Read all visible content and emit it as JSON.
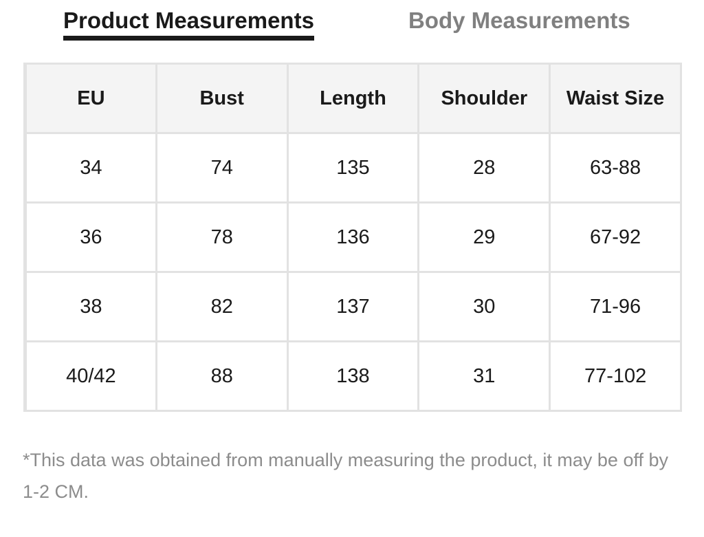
{
  "tabs": {
    "active_label": "Product Measurements",
    "inactive_label": "Body Measurements"
  },
  "size_table": {
    "headers": [
      "EU",
      "Bust",
      "Length",
      "Shoulder",
      "Waist Size"
    ],
    "rows": [
      [
        "34",
        "74",
        "135",
        "28",
        "63-88"
      ],
      [
        "36",
        "78",
        "136",
        "29",
        "67-92"
      ],
      [
        "38",
        "82",
        "137",
        "30",
        "71-96"
      ],
      [
        "40/42",
        "88",
        "138",
        "31",
        "77-102"
      ]
    ]
  },
  "note": "*This data was obtained from manually measuring the product, it may be off by 1-2 CM.",
  "colors": {
    "text": "#1a1a1a",
    "inactive_tab": "#808080",
    "header_bg": "#f4f4f4",
    "border": "#e2e2e2",
    "note_text": "#8c8c8c"
  }
}
